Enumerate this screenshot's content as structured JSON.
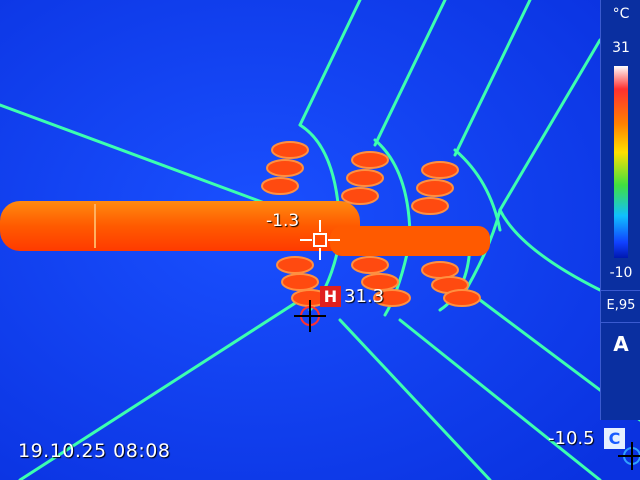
{
  "image": {
    "type": "thermal-camera-frame",
    "palette_colors": {
      "background": "#0a3cf0",
      "hot": "#ff4a00",
      "wire": "#3cffb0"
    }
  },
  "readouts": {
    "spot_temp": "-1.3",
    "hot_label": "H",
    "hot_temp": "31.3",
    "cold_temp": "-10.5",
    "cold_label": "C",
    "datetime": "19.10.25 08:08"
  },
  "scale": {
    "unit": "°C",
    "max": "31",
    "min": "-10",
    "emissivity": "E,95",
    "mode": "A"
  },
  "icons": [
    "crosshair-icon",
    "hot-spot-marker-icon",
    "cold-spot-marker-icon"
  ]
}
